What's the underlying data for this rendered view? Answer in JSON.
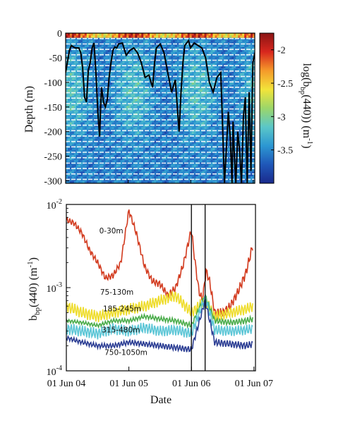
{
  "chart_data": [
    {
      "type": "heatmap",
      "title": "",
      "xlabel": "",
      "ylabel": "Depth (m)",
      "ylim": [
        -305,
        0
      ],
      "yticks": [
        "0",
        "-50",
        "-100",
        "-150",
        "-200",
        "-250",
        "-300"
      ],
      "colorbar": {
        "label_main": "log(b",
        "label_sub": "bp",
        "label_rest": "(440)) (m",
        "label_sup": "-1",
        "label_end": ")",
        "ticks": [
          "-2",
          "-2.5",
          "-3",
          "-3.5"
        ],
        "range": [
          -4.0,
          -1.75
        ],
        "colors": [
          "#1a2a8c",
          "#1f57b8",
          "#2c97d2",
          "#5bc7c8",
          "#9bd66a",
          "#f2e43a",
          "#f59a2a",
          "#d8271e",
          "#8a1414"
        ]
      },
      "line": {
        "name": "",
        "color": "#000000",
        "t": [
          0,
          0.02,
          0.03,
          0.05,
          0.07,
          0.08,
          0.09,
          0.1,
          0.11,
          0.12,
          0.13,
          0.14,
          0.15,
          0.16,
          0.17,
          0.18,
          0.185,
          0.19,
          0.2,
          0.21,
          0.22,
          0.23,
          0.24,
          0.25,
          0.26,
          0.27,
          0.28,
          0.3,
          0.32,
          0.34,
          0.36,
          0.38,
          0.4,
          0.42,
          0.44,
          0.46,
          0.47,
          0.48,
          0.5,
          0.52,
          0.54,
          0.56,
          0.58,
          0.6,
          0.61,
          0.62,
          0.63,
          0.64,
          0.65,
          0.66,
          0.68,
          0.7,
          0.72,
          0.74,
          0.76,
          0.78,
          0.8,
          0.82,
          0.84,
          0.86,
          0.87,
          0.88,
          0.885,
          0.89,
          0.9,
          0.91,
          0.92,
          0.93,
          0.94,
          0.95,
          0.96,
          0.97,
          0.98,
          0.99,
          1.0
        ],
        "depth": [
          -80,
          -35,
          -25,
          -30,
          -30,
          -40,
          -70,
          -130,
          -140,
          -75,
          -60,
          -30,
          -20,
          -80,
          -160,
          -210,
          -150,
          -110,
          -140,
          -150,
          -135,
          -90,
          -60,
          -35,
          -28,
          -30,
          -22,
          -20,
          -45,
          -35,
          -30,
          -40,
          -60,
          -90,
          -85,
          -110,
          -60,
          -30,
          -22,
          -40,
          -80,
          -120,
          -95,
          -200,
          -120,
          -60,
          -25,
          -20,
          -15,
          -30,
          -20,
          -25,
          -30,
          -50,
          -100,
          -120,
          -90,
          -80,
          -305,
          -160,
          -210,
          -305,
          -180,
          -230,
          -305,
          -200,
          -240,
          -305,
          -170,
          -130,
          -305,
          -120,
          -280,
          -60,
          -40
        ]
      }
    },
    {
      "type": "line",
      "title": "",
      "xlabel": "Date",
      "ylabel_main": "b",
      "ylabel_sub": "bp",
      "ylabel_rest": "(440) (m",
      "ylabel_sup": "-1",
      "ylabel_end": ")",
      "yscale": "log",
      "ylim": [
        0.0001,
        0.01
      ],
      "yticks": [
        {
          "base": "10",
          "exp": "-4",
          "value": 0.0001
        },
        {
          "base": "10",
          "exp": "-3",
          "value": 0.001
        },
        {
          "base": "10",
          "exp": "-2",
          "value": 0.01
        }
      ],
      "xlim": [
        "2004-06-01",
        "2007-06-10"
      ],
      "xticks": [
        "01 Jun 04",
        "01 Jun 05",
        "01 Jun 06",
        "01 Jun 07"
      ],
      "vlines": [
        "2006-06-01",
        "2006-08-20"
      ],
      "series": [
        {
          "name": "0-30m",
          "color": "#d23a1e",
          "x": [
            "2004-06-01",
            "2004-07-15",
            "2004-09-01",
            "2004-10-15",
            "2004-12-01",
            "2005-01-15",
            "2005-03-01",
            "2005-04-15",
            "2005-06-01",
            "2005-07-15",
            "2005-09-01",
            "2005-10-15",
            "2005-12-01",
            "2006-01-15",
            "2006-03-01",
            "2006-04-15",
            "2006-06-01",
            "2006-06-20",
            "2006-07-15",
            "2006-08-05",
            "2006-08-25",
            "2006-09-15",
            "2006-10-15",
            "2006-12-01",
            "2007-01-15",
            "2007-03-01",
            "2007-04-15",
            "2007-05-25"
          ],
          "values": [
            0.0065,
            0.006,
            0.0045,
            0.0028,
            0.002,
            0.0013,
            0.0014,
            0.002,
            0.0085,
            0.0045,
            0.0018,
            0.0012,
            0.0011,
            0.0008,
            0.001,
            0.0019,
            0.005,
            0.0022,
            0.0009,
            0.0007,
            0.0016,
            0.0012,
            0.0005,
            0.0005,
            0.0006,
            0.0009,
            0.0015,
            0.0032
          ]
        },
        {
          "name": "75-130m",
          "color": "#eedc2a",
          "x": [
            "2004-06-01",
            "2004-09-01",
            "2004-12-01",
            "2005-03-01",
            "2005-06-01",
            "2005-09-01",
            "2005-12-01",
            "2006-03-01",
            "2006-06-01",
            "2006-08-20",
            "2006-10-15",
            "2007-01-15",
            "2007-04-15",
            "2007-05-25"
          ],
          "values": [
            0.0006,
            0.0005,
            0.00045,
            0.0005,
            0.00055,
            0.0006,
            0.0007,
            0.0008,
            0.0005,
            0.0007,
            0.00045,
            0.0005,
            0.00055,
            0.0006
          ]
        },
        {
          "name": "185-245m",
          "color": "#4cad4c",
          "x": [
            "2004-06-01",
            "2004-09-01",
            "2004-12-01",
            "2005-03-01",
            "2005-06-01",
            "2005-09-01",
            "2005-12-01",
            "2006-03-01",
            "2006-06-01",
            "2006-08-20",
            "2006-10-15",
            "2007-01-15",
            "2007-04-15",
            "2007-05-25"
          ],
          "values": [
            0.0004,
            0.00038,
            0.00035,
            0.0004,
            0.0004,
            0.00045,
            0.00042,
            0.0004,
            0.00035,
            0.0008,
            0.0004,
            0.00038,
            0.0004,
            0.00042
          ]
        },
        {
          "name": "315-480m",
          "color": "#5cc6d6",
          "x": [
            "2004-06-01",
            "2004-09-01",
            "2004-12-01",
            "2005-03-01",
            "2005-06-01",
            "2005-09-01",
            "2005-12-01",
            "2006-03-01",
            "2006-06-01",
            "2006-08-20",
            "2006-10-15",
            "2007-01-15",
            "2007-04-15",
            "2007-05-25"
          ],
          "values": [
            0.00032,
            0.0003,
            0.00028,
            0.00032,
            0.0003,
            0.00033,
            0.0003,
            0.00031,
            0.00028,
            0.00075,
            0.00031,
            0.0003,
            0.00031,
            0.00032
          ]
        },
        {
          "name": "750-1050m",
          "color": "#2c3e94",
          "x": [
            "2004-06-01",
            "2004-09-01",
            "2004-12-01",
            "2005-03-01",
            "2005-06-01",
            "2005-09-01",
            "2005-12-01",
            "2006-03-01",
            "2006-06-01",
            "2006-08-20",
            "2006-10-15",
            "2007-01-15",
            "2007-04-15",
            "2007-05-25"
          ],
          "values": [
            0.00025,
            0.00022,
            0.0002,
            0.0002,
            0.00022,
            0.00021,
            0.0002,
            0.00019,
            0.00018,
            0.0007,
            0.00022,
            0.00021,
            0.0002,
            0.00021
          ]
        }
      ]
    }
  ]
}
